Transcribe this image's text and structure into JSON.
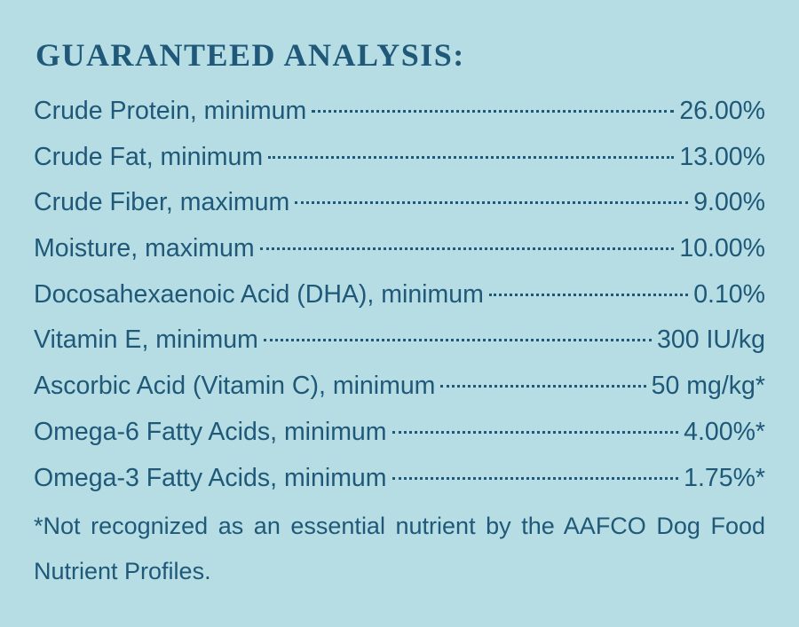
{
  "title": "GUARANTEED ANALYSIS:",
  "rows": [
    {
      "label": "Crude Protein, minimum",
      "value": "26.00%"
    },
    {
      "label": "Crude Fat, minimum",
      "value": "13.00%"
    },
    {
      "label": "Crude Fiber, maximum",
      "value": "9.00%"
    },
    {
      "label": "Moisture, maximum",
      "value": "10.00%"
    },
    {
      "label": "Docosahexaenoic Acid (DHA), minimum",
      "value": "0.10%"
    },
    {
      "label": "Vitamin E, minimum",
      "value": "300 IU/kg"
    },
    {
      "label": "Ascorbic Acid (Vitamin C), minimum",
      "value": "50 mg/kg*"
    },
    {
      "label": "Omega-6 Fatty Acids, minimum",
      "value": "4.00%*"
    },
    {
      "label": "Omega-3 Fatty Acids, minimum",
      "value": "1.75%*"
    }
  ],
  "footnote": "*Not recognized as an essential nutrient by the AAFCO Dog Food Nutrient Profiles."
}
